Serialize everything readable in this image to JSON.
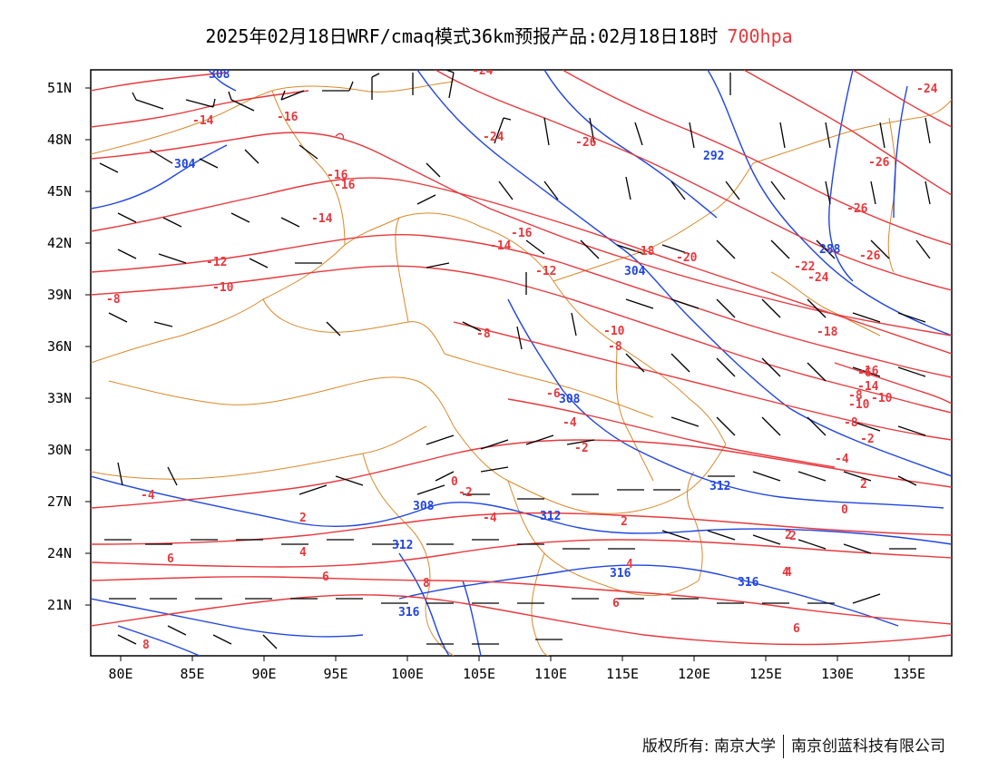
{
  "title": {
    "main": "2025年02月18日WRF/cmaq模式36km预报产品:02月18日18时",
    "level": "700hpa"
  },
  "lat_labels": [
    "51N",
    "48N",
    "45N",
    "42N",
    "39N",
    "36N",
    "33N",
    "30N",
    "27N",
    "24N",
    "21N"
  ],
  "lon_labels": [
    "80E",
    "85E",
    "90E",
    "95E",
    "100E",
    "105E",
    "110E",
    "115E",
    "120E",
    "125E",
    "130E",
    "135E"
  ],
  "temperature_labels": [
    "-14",
    "-16",
    "-16",
    "-16",
    "-14",
    "-16",
    "-14",
    "-12",
    "-10",
    "-8",
    "-24",
    "-26",
    "-26",
    "-24",
    "-26",
    "-26",
    "-20",
    "-22",
    "-24",
    "-18",
    "-18",
    "-16",
    "-14",
    "-12",
    "-10",
    "-8",
    "-8",
    "-10",
    "-8",
    "-6",
    "-4",
    "-2",
    "-4",
    "-2",
    "0",
    "2",
    "2",
    "-4",
    "-2",
    "0",
    "-4",
    "-6",
    "-8",
    "-10",
    "2",
    "4",
    "2",
    "4",
    "6",
    "6",
    "6",
    "8",
    "4",
    "2",
    "4",
    "6",
    "8",
    "-24"
  ],
  "height_labels": [
    "308",
    "304",
    "292",
    "288",
    "304",
    "308",
    "308",
    "312",
    "312",
    "316",
    "316",
    "316",
    "312"
  ],
  "colors": {
    "temperature": "#e8383d",
    "height": "#2045e0",
    "border": "#d8892a",
    "wind": "#000000"
  },
  "footer": {
    "copyright": "版权所有: 南京大学",
    "company": "南京创蓝科技有限公司"
  }
}
